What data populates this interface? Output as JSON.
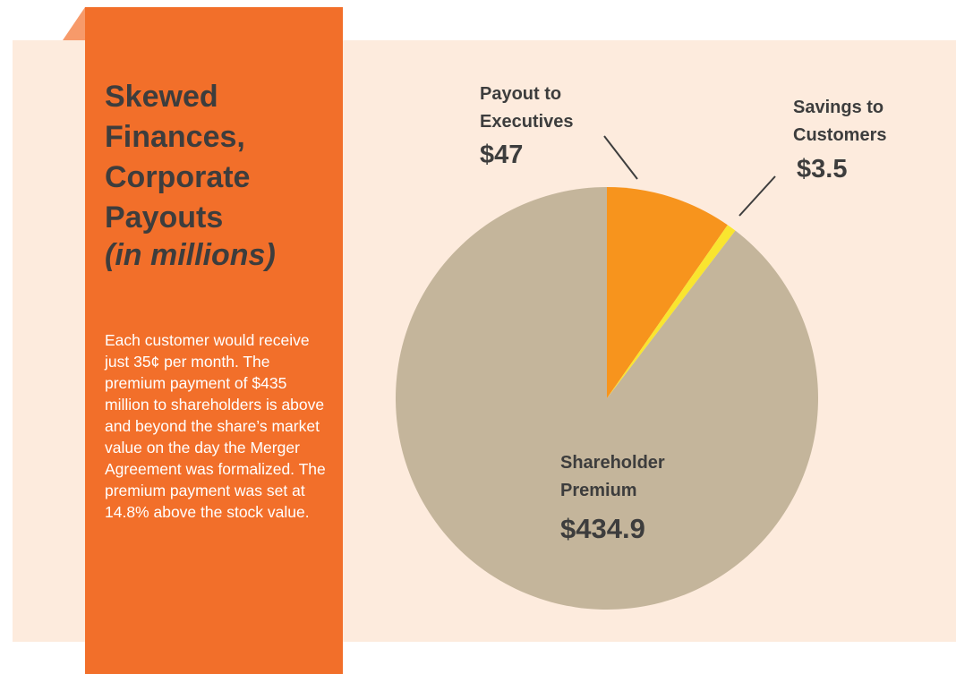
{
  "chart_data": {
    "type": "pie",
    "title": "Skewed Finances, Corporate Payouts",
    "subtitle": "(in millions)",
    "description": "Each customer would receive just 35¢ per month. The premium payment of $435 million to shareholders is above and beyond the share’s market value on the day the Merger Agreement was formalized. The premium payment was set at 14.8% above the stock value.",
    "categories": [
      "Payout to Executives",
      "Savings to Customers",
      "Shareholder Premium"
    ],
    "values": [
      47,
      3.5,
      434.9
    ],
    "value_labels": [
      "$47",
      "$3.5",
      "$434.9"
    ],
    "colors": [
      "#f7941d",
      "#f9e52f",
      "#c4b59b"
    ]
  }
}
